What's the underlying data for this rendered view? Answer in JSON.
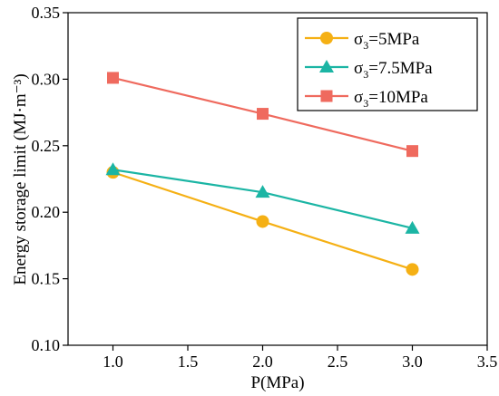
{
  "chart_data": {
    "type": "line",
    "x": [
      1.0,
      2.0,
      3.0
    ],
    "xlabel": "P(MPa)",
    "ylabel": "Energy storage limit (MJ·m⁻³)",
    "xlim": [
      0.7,
      3.5
    ],
    "ylim": [
      0.1,
      0.35
    ],
    "xticks": [
      "1.0",
      "1.5",
      "2.0",
      "2.5",
      "3.0",
      "3.5"
    ],
    "yticks": [
      "0.10",
      "0.15",
      "0.20",
      "0.25",
      "0.30",
      "0.35"
    ],
    "grid": false,
    "legend_position": "top-right",
    "series": [
      {
        "name": "σ3=5MPa",
        "name_main": "σ",
        "name_sub": "3",
        "name_rest": "=5MPa",
        "values": [
          0.23,
          0.193,
          0.157
        ],
        "color": "#f5b014",
        "marker": "circle"
      },
      {
        "name": "σ3=7.5MPa",
        "name_main": "σ",
        "name_sub": "3",
        "name_rest": "=7.5MPa",
        "values": [
          0.232,
          0.215,
          0.188
        ],
        "color": "#1bb5a4",
        "marker": "triangle"
      },
      {
        "name": "σ3=10MPa",
        "name_main": "σ",
        "name_sub": "3",
        "name_rest": "=10MPa",
        "values": [
          0.301,
          0.274,
          0.246
        ],
        "color": "#ef6a5e",
        "marker": "square"
      }
    ]
  }
}
